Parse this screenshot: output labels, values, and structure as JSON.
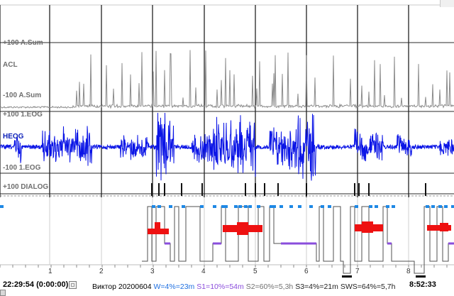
{
  "channels": {
    "asum_top": "+100 A.Sum",
    "acl": "ACL",
    "asum_bottom": "-100 A.Sum",
    "eog_top": "+100 1.EOG",
    "heog": "HEOG",
    "eog_bottom": "-100 1.EOG",
    "dialog": "+100 DIALOG"
  },
  "time_axis": {
    "start": "22:29:54 (0:00:00)",
    "end": "8:52:33",
    "hours": [
      "1",
      "2",
      "3",
      "4",
      "5",
      "6",
      "7",
      "8"
    ]
  },
  "summary": {
    "patient": "Виктор 20200604",
    "w": "W=4%=23m",
    "s1": "S1=10%=54m",
    "s2": "S2=60%=5,3h",
    "s3": "S3=4%=21m",
    "sws": "SWS=64%=5,7h"
  },
  "colors": {
    "eog_trace": "#0a14e6",
    "asum_trace": "#8c8c8c",
    "wake_marks": "#1e88e5",
    "s1_stage": "#8a4ddc",
    "rem_blocks": "#ee1111",
    "hypnogram_line": "#505050"
  },
  "icons": {
    "scroll_box": "scroll-box-icon"
  }
}
